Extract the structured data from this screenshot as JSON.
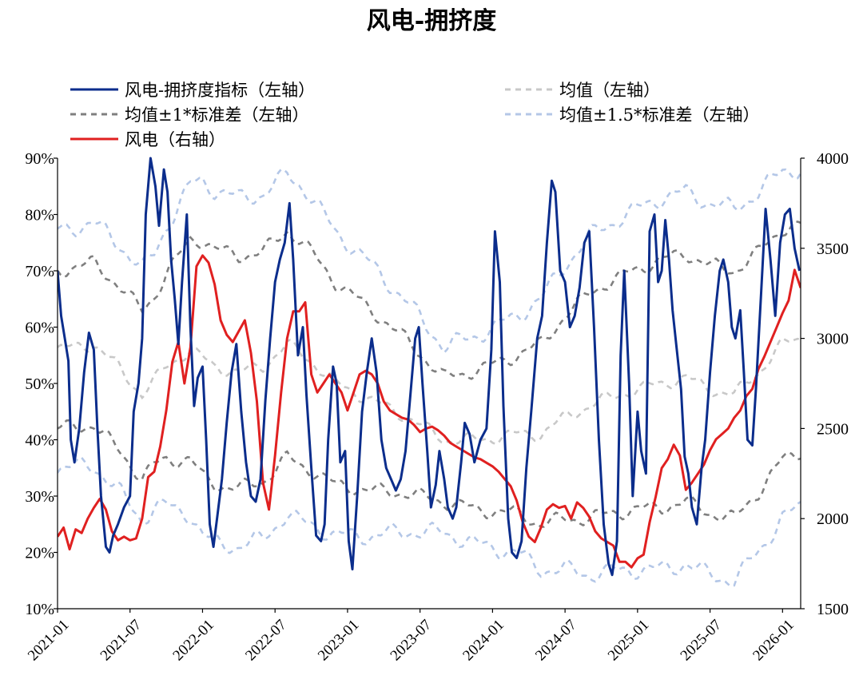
{
  "chart_data": {
    "type": "line",
    "title": "风电-拥挤度",
    "x_ticks": [
      "2021-01",
      "2021-07",
      "2022-01",
      "2022-07",
      "2023-01",
      "2023-07",
      "2024-01",
      "2024-07",
      "2025-01",
      "2025-07",
      "2026-01"
    ],
    "x_range": [
      0,
      61.5
    ],
    "y_left": {
      "range": [
        10,
        90
      ],
      "ticks": [
        10,
        20,
        30,
        40,
        50,
        60,
        70,
        80,
        90
      ],
      "format": "percent"
    },
    "y_right": {
      "range": [
        1500,
        4000
      ],
      "ticks": [
        1500,
        2000,
        2500,
        3000,
        3500,
        4000
      ]
    },
    "legend": [
      {
        "key": "idx",
        "label": "风电-拥挤度指标（左轴）",
        "color": "#0b2d8c",
        "dash": ""
      },
      {
        "key": "mean",
        "label": "均值（左轴）",
        "color": "#c8c8c8",
        "dash": "7,6"
      },
      {
        "key": "sd1",
        "label": "均值±1*标准差（左轴）",
        "color": "#7f7f7f",
        "dash": "7,6"
      },
      {
        "key": "sd15",
        "label": "均值±1.5*标准差（左轴）",
        "color": "#b4c7e7",
        "dash": "7,6"
      },
      {
        "key": "price",
        "label": "风电（右轴）",
        "color": "#e02020",
        "dash": ""
      }
    ],
    "series": [
      {
        "name": "风电-拥挤度指标（左轴）",
        "axis": "left",
        "color": "#0b2d8c",
        "width": 3,
        "points": [
          [
            0,
            70
          ],
          [
            0.3,
            62
          ],
          [
            0.6,
            58
          ],
          [
            0.9,
            54
          ],
          [
            1.1,
            40
          ],
          [
            1.4,
            36
          ],
          [
            1.8,
            42
          ],
          [
            2.2,
            52
          ],
          [
            2.6,
            59
          ],
          [
            3,
            56
          ],
          [
            3.3,
            42
          ],
          [
            3.6,
            30
          ],
          [
            4,
            21
          ],
          [
            4.3,
            20
          ],
          [
            4.6,
            23
          ],
          [
            5,
            25
          ],
          [
            5.5,
            28
          ],
          [
            6,
            30
          ],
          [
            6.3,
            45
          ],
          [
            6.7,
            50
          ],
          [
            7,
            58
          ],
          [
            7.3,
            80
          ],
          [
            7.7,
            90
          ],
          [
            8.1,
            85
          ],
          [
            8.4,
            78
          ],
          [
            8.8,
            88
          ],
          [
            9.1,
            84
          ],
          [
            9.4,
            72
          ],
          [
            9.7,
            65
          ],
          [
            10,
            57
          ],
          [
            10.3,
            68
          ],
          [
            10.7,
            80
          ],
          [
            11,
            60
          ],
          [
            11.3,
            46
          ],
          [
            11.6,
            51
          ],
          [
            12,
            53
          ],
          [
            12.3,
            40
          ],
          [
            12.6,
            25
          ],
          [
            12.9,
            21
          ],
          [
            13.2,
            26
          ],
          [
            13.6,
            33
          ],
          [
            14,
            43
          ],
          [
            14.4,
            52
          ],
          [
            14.8,
            57
          ],
          [
            15.2,
            45
          ],
          [
            15.6,
            36
          ],
          [
            16,
            30
          ],
          [
            16.4,
            29
          ],
          [
            16.8,
            33
          ],
          [
            17.2,
            47
          ],
          [
            17.6,
            58
          ],
          [
            18,
            68
          ],
          [
            18.4,
            72
          ],
          [
            18.8,
            75
          ],
          [
            19.2,
            82
          ],
          [
            19.5,
            72
          ],
          [
            19.9,
            55
          ],
          [
            20.3,
            60
          ],
          [
            20.6,
            48
          ],
          [
            21,
            35
          ],
          [
            21.4,
            23
          ],
          [
            21.8,
            22
          ],
          [
            22.1,
            25
          ],
          [
            22.4,
            40
          ],
          [
            22.8,
            53
          ],
          [
            23.1,
            50
          ],
          [
            23.4,
            36
          ],
          [
            23.8,
            38
          ],
          [
            24.1,
            22
          ],
          [
            24.4,
            17
          ],
          [
            24.8,
            30
          ],
          [
            25.2,
            45
          ],
          [
            25.6,
            52
          ],
          [
            26,
            58
          ],
          [
            26.4,
            52
          ],
          [
            26.8,
            40
          ],
          [
            27.2,
            35
          ],
          [
            27.6,
            33
          ],
          [
            28,
            31
          ],
          [
            28.4,
            33
          ],
          [
            28.8,
            38
          ],
          [
            29.2,
            48
          ],
          [
            29.6,
            58
          ],
          [
            29.9,
            60
          ],
          [
            30.2,
            50
          ],
          [
            30.6,
            38
          ],
          [
            30.9,
            28
          ],
          [
            31.3,
            32
          ],
          [
            31.6,
            38
          ],
          [
            32,
            33
          ],
          [
            32.3,
            28
          ],
          [
            32.7,
            26
          ],
          [
            33,
            28
          ],
          [
            33.4,
            36
          ],
          [
            33.7,
            43
          ],
          [
            34.1,
            41
          ],
          [
            34.5,
            36
          ],
          [
            35,
            40
          ],
          [
            35.5,
            42
          ],
          [
            35.9,
            56
          ],
          [
            36.2,
            77
          ],
          [
            36.6,
            68
          ],
          [
            36.9,
            46
          ],
          [
            37.3,
            26
          ],
          [
            37.6,
            20
          ],
          [
            38,
            19
          ],
          [
            38.4,
            22
          ],
          [
            38.8,
            35
          ],
          [
            39.2,
            45
          ],
          [
            39.7,
            58
          ],
          [
            40.1,
            62
          ],
          [
            40.5,
            75
          ],
          [
            40.9,
            86
          ],
          [
            41.2,
            84
          ],
          [
            41.6,
            70
          ],
          [
            42,
            68
          ],
          [
            42.4,
            60
          ],
          [
            42.8,
            62
          ],
          [
            43.2,
            67
          ],
          [
            43.6,
            75
          ],
          [
            44,
            77
          ],
          [
            44.4,
            60
          ],
          [
            44.8,
            40
          ],
          [
            45.2,
            25
          ],
          [
            45.6,
            18
          ],
          [
            45.9,
            16
          ],
          [
            46.3,
            22
          ],
          [
            46.6,
            55
          ],
          [
            46.9,
            70
          ],
          [
            47.3,
            50
          ],
          [
            47.6,
            30
          ],
          [
            48,
            45
          ],
          [
            48.3,
            38
          ],
          [
            48.7,
            34
          ],
          [
            49,
            77
          ],
          [
            49.4,
            80
          ],
          [
            49.7,
            68
          ],
          [
            50,
            70
          ],
          [
            50.3,
            79
          ],
          [
            50.6,
            72
          ],
          [
            50.9,
            63
          ],
          [
            51.2,
            57
          ],
          [
            51.6,
            49
          ],
          [
            51.9,
            37
          ],
          [
            52.2,
            34
          ],
          [
            52.5,
            28
          ],
          [
            52.9,
            25
          ],
          [
            53.3,
            35
          ],
          [
            53.6,
            40
          ],
          [
            54,
            52
          ],
          [
            54.4,
            62
          ],
          [
            54.8,
            70
          ],
          [
            55.1,
            72
          ],
          [
            55.5,
            68
          ],
          [
            55.8,
            60
          ],
          [
            56.1,
            58
          ],
          [
            56.5,
            63
          ],
          [
            56.8,
            52
          ],
          [
            57.1,
            40
          ],
          [
            57.5,
            39
          ],
          [
            57.8,
            49
          ],
          [
            58.2,
            65
          ],
          [
            58.6,
            81
          ],
          [
            59,
            72
          ],
          [
            59.4,
            62
          ],
          [
            59.8,
            75
          ],
          [
            60.2,
            80
          ],
          [
            60.6,
            81
          ],
          [
            61,
            74
          ],
          [
            61.4,
            70
          ]
        ],
        "bounded_x": true
      },
      {
        "name": "风电（右轴）",
        "axis": "right",
        "color": "#e02020",
        "width": 3
      },
      {
        "name": "均值（左轴）",
        "axis": "left",
        "color": "#c8c8c8",
        "width": 2.6,
        "dash": "7,6"
      },
      {
        "name": "均值+1*标准差（左轴）",
        "axis": "left",
        "color": "#7f7f7f",
        "width": 2.6,
        "dash": "7,6"
      },
      {
        "name": "均值-1*标准差（左轴）",
        "axis": "left",
        "color": "#7f7f7f",
        "width": 2.6,
        "dash": "7,6"
      },
      {
        "name": "均值+1.5*标准差（左轴）",
        "axis": "left",
        "color": "#b4c7e7",
        "width": 2.6,
        "dash": "7,6"
      },
      {
        "name": "均值-1.5*标准差（左轴）",
        "axis": "left",
        "color": "#b4c7e7",
        "width": 2.6,
        "dash": "7,6"
      }
    ]
  }
}
